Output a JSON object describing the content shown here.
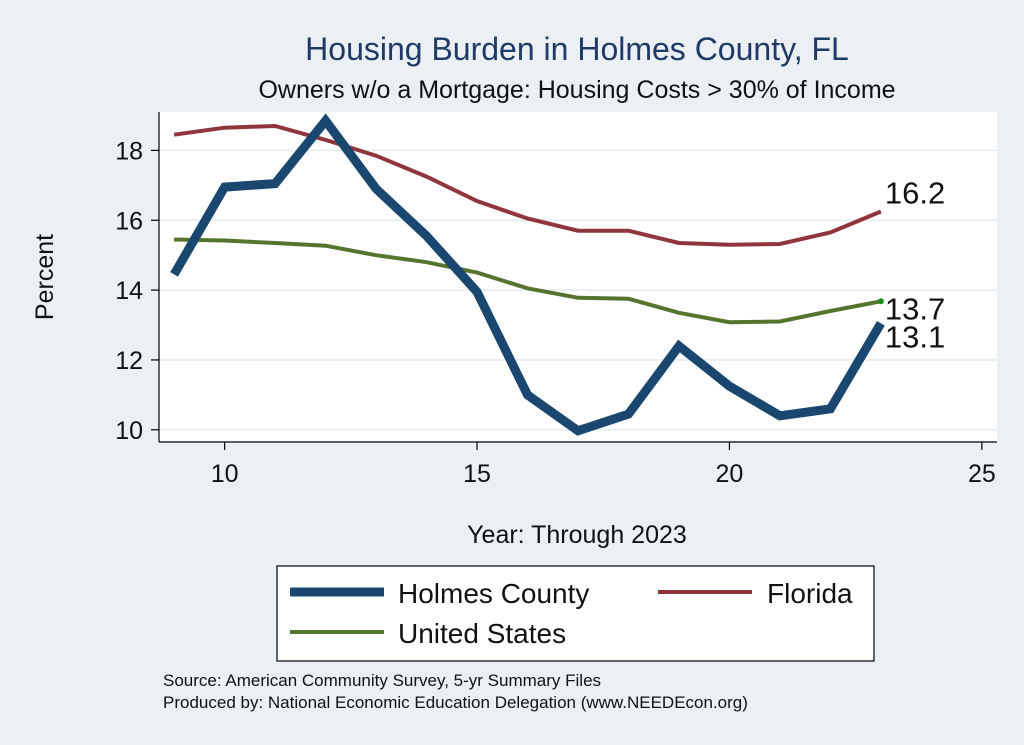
{
  "colors": {
    "background": "#eaf0f3",
    "plot_background": "#ffffff",
    "grid": "#e2ebee",
    "holmes": "#1a476f",
    "florida": "#90353b",
    "us": "#55752f",
    "us_marker": "#1a8a1a"
  },
  "chart_data": {
    "type": "line",
    "title": "Housing Burden in Holmes County, FL",
    "subtitle": "Owners w/o a Mortgage: Housing Costs > 30% of Income",
    "xlabel": "Year: Through 2023",
    "ylabel": "Percent",
    "xlim": [
      8.7,
      25.3
    ],
    "ylim": [
      9.65,
      19.1
    ],
    "xticks": [
      10,
      15,
      20,
      25
    ],
    "yticks": [
      10,
      12,
      14,
      16,
      18
    ],
    "x": [
      9,
      10,
      11,
      12,
      13,
      14,
      15,
      16,
      17,
      18,
      19,
      20,
      21,
      22,
      23
    ],
    "series": [
      {
        "name": "Holmes County",
        "key": "holmes",
        "values": [
          14.45,
          16.95,
          17.05,
          18.85,
          16.9,
          15.55,
          13.95,
          11.0,
          9.97,
          10.45,
          12.4,
          11.25,
          10.4,
          10.6,
          13.05
        ],
        "end_label": "13.1"
      },
      {
        "name": "Florida",
        "key": "florida",
        "values": [
          18.45,
          18.65,
          18.7,
          18.3,
          17.85,
          17.25,
          16.55,
          16.05,
          15.7,
          15.7,
          15.35,
          15.3,
          15.32,
          15.65,
          16.25
        ],
        "end_label": "16.2"
      },
      {
        "name": "United States",
        "key": "us",
        "values": [
          15.45,
          15.42,
          15.35,
          15.27,
          15.0,
          14.8,
          14.5,
          14.05,
          13.78,
          13.75,
          13.35,
          13.08,
          13.1,
          13.4,
          13.68
        ],
        "end_label": "13.7"
      }
    ],
    "legend": {
      "position": "bottom",
      "items": [
        "Holmes County",
        "Florida",
        "United States"
      ]
    }
  },
  "footer": {
    "source": "Source: American Community Survey, 5-yr Summary Files",
    "produced_by": "Produced by: National Economic Education Delegation (www.NEEDEcon.org)"
  }
}
